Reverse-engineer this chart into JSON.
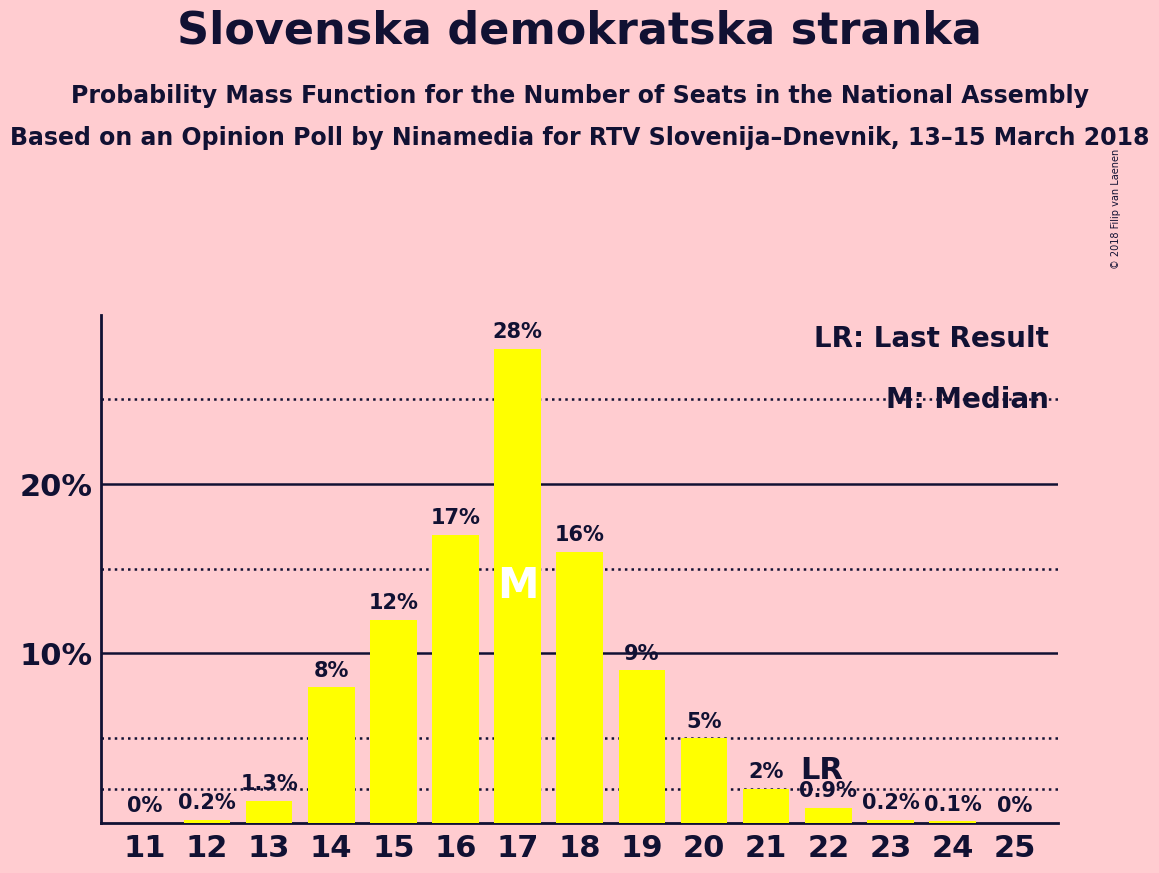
{
  "title": "Slovenska demokratska stranka",
  "subtitle1": "Probability Mass Function for the Number of Seats in the National Assembly",
  "subtitle2": "Based on an Opinion Poll by Ninamedia for RTV Slovenija–Dnevnik, 13–15 March 2018",
  "copyright": "© 2018 Filip van Laenen",
  "seats": [
    11,
    12,
    13,
    14,
    15,
    16,
    17,
    18,
    19,
    20,
    21,
    22,
    23,
    24,
    25
  ],
  "probabilities": [
    0.0,
    0.2,
    1.3,
    8.0,
    12.0,
    17.0,
    28.0,
    16.0,
    9.0,
    5.0,
    2.0,
    0.9,
    0.2,
    0.1,
    0.0
  ],
  "bar_color": "#FFFF00",
  "bar_edgecolor": "#CCCC00",
  "background_color": "#FFCCD0",
  "text_color": "#111133",
  "median_seat": 17,
  "median_label": "M",
  "lr_seat": 21,
  "lr_label": "LR",
  "lr_prob": 2.0,
  "ylim": [
    0,
    30
  ],
  "solid_yticks": [
    10,
    20
  ],
  "dotted_yticks": [
    5,
    15,
    25
  ],
  "bar_labels": [
    "0%",
    "0.2%",
    "1.3%",
    "8%",
    "12%",
    "17%",
    "28%",
    "16%",
    "9%",
    "5%",
    "2%",
    "0.9%",
    "0.2%",
    "0.1%",
    "0%"
  ],
  "legend_lr": "LR: Last Result",
  "legend_m": "M: Median",
  "title_fontsize": 32,
  "subtitle1_fontsize": 17,
  "subtitle2_fontsize": 17,
  "axis_fontsize": 22,
  "bar_label_fontsize": 15,
  "legend_fontsize": 20,
  "median_fontsize": 30,
  "lr_fontsize": 22
}
